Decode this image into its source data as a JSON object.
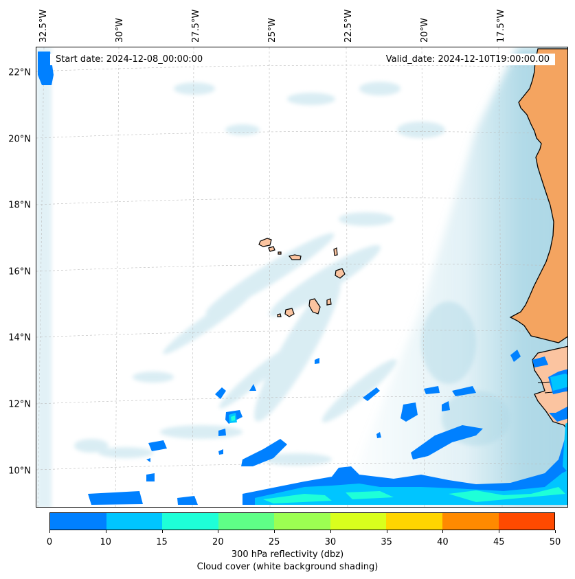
{
  "map": {
    "start_date": "Start date: 2024-12-08_00:00:00",
    "valid_date": "Valid_date: 2024-12-10T19:00:00.00",
    "lat_labels": [
      {
        "lat": 22,
        "label": "22°N"
      },
      {
        "lat": 20,
        "label": "20°N"
      },
      {
        "lat": 18,
        "label": "18°N"
      },
      {
        "lat": 16,
        "label": "16°N"
      },
      {
        "lat": 14,
        "label": "14°N"
      },
      {
        "lat": 12,
        "label": "12°N"
      },
      {
        "lat": 10,
        "label": "10°N"
      }
    ],
    "lon_labels": [
      {
        "lon": -32.5,
        "label": "32.5°W"
      },
      {
        "lon": -30,
        "label": "30°W"
      },
      {
        "lon": -27.5,
        "label": "27.5°W"
      },
      {
        "lon": -25,
        "label": "25°W"
      },
      {
        "lon": -22.5,
        "label": "22.5°W"
      },
      {
        "lon": -20,
        "label": "20°W"
      },
      {
        "lon": -17.5,
        "label": "17.5°W"
      }
    ],
    "colors": {
      "ocean": "#ffffff",
      "cloud": "#add8e6",
      "land_desert": "#f4a460",
      "land_south": "#fbc4a0",
      "coastline": "#000000",
      "gridline": "#bbbbbb"
    }
  },
  "colorbar": {
    "ticks": [
      "0",
      "10",
      "15",
      "20",
      "25",
      "30",
      "35",
      "40",
      "45",
      "50"
    ],
    "colors": [
      "#0080ff",
      "#00c5ff",
      "#1effd8",
      "#5fff87",
      "#9cff52",
      "#d9ff1d",
      "#ffd500",
      "#ff8a00",
      "#ff4a00"
    ],
    "label_line1": "300 hPa reflectivity (dbz)",
    "label_line2": "Cloud cover (white background shading)"
  }
}
